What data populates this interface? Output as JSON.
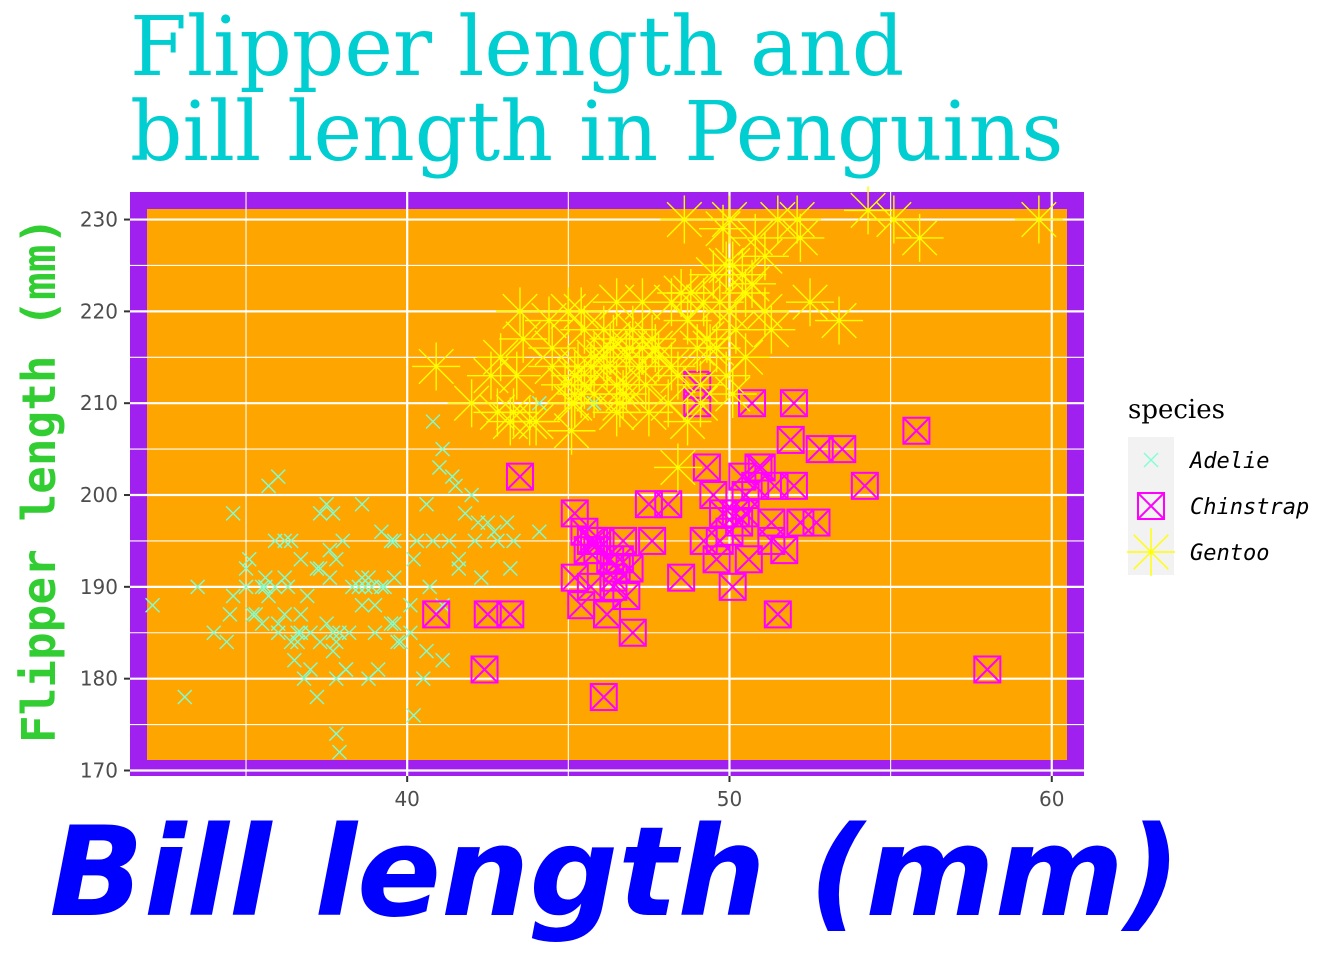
{
  "chart_data": {
    "type": "scatter",
    "title_lines": [
      "Flipper length and",
      "bill length in Penguins"
    ],
    "xlabel": "Bill length (mm)",
    "ylabel": "Flipper length (mm)",
    "xlim": [
      31.4,
      61.0
    ],
    "ylim": [
      169.4,
      233.0
    ],
    "x_ticks": [
      40,
      50,
      60
    ],
    "y_ticks": [
      170,
      180,
      190,
      200,
      210,
      220,
      230
    ],
    "grid": true,
    "legend": {
      "title": "species",
      "position": "right"
    },
    "colors": {
      "panel_border": "#A020F0",
      "panel_fill": "#FFA500",
      "grid": "#ffffff",
      "legend_key_bg": "#F2F2F2"
    },
    "series": [
      {
        "name": "Adelie",
        "color": "#7FFFD4",
        "marker": "x",
        "points": [
          [
            32.1,
            188
          ],
          [
            33.1,
            178
          ],
          [
            33.5,
            190
          ],
          [
            34.0,
            185
          ],
          [
            34.4,
            184
          ],
          [
            34.5,
            187
          ],
          [
            34.6,
            198
          ],
          [
            34.6,
            189
          ],
          [
            35.0,
            192
          ],
          [
            35.0,
            190
          ],
          [
            35.1,
            193
          ],
          [
            35.2,
            187
          ],
          [
            35.3,
            187
          ],
          [
            35.5,
            186
          ],
          [
            35.5,
            190
          ],
          [
            35.6,
            191
          ],
          [
            35.7,
            189
          ],
          [
            35.9,
            190
          ],
          [
            35.9,
            195
          ],
          [
            36.0,
            185
          ],
          [
            36.0,
            186
          ],
          [
            36.0,
            202
          ],
          [
            36.2,
            187
          ],
          [
            36.2,
            191
          ],
          [
            36.2,
            195
          ],
          [
            36.3,
            190
          ],
          [
            36.4,
            184
          ],
          [
            36.5,
            182
          ],
          [
            36.6,
            185
          ],
          [
            36.6,
            184
          ],
          [
            36.7,
            187
          ],
          [
            36.7,
            193
          ],
          [
            36.8,
            180
          ],
          [
            36.9,
            189
          ],
          [
            37.0,
            185
          ],
          [
            37.0,
            181
          ],
          [
            37.2,
            178
          ],
          [
            37.2,
            192
          ],
          [
            37.3,
            184
          ],
          [
            37.3,
            192
          ],
          [
            37.3,
            198
          ],
          [
            37.5,
            199
          ],
          [
            37.6,
            194
          ],
          [
            37.6,
            191
          ],
          [
            37.7,
            185
          ],
          [
            37.7,
            183
          ],
          [
            37.7,
            198
          ],
          [
            37.8,
            174
          ],
          [
            37.8,
            180
          ],
          [
            37.8,
            184
          ],
          [
            37.9,
            172
          ],
          [
            37.9,
            185
          ],
          [
            38.0,
            195
          ],
          [
            38.1,
            181
          ],
          [
            38.2,
            185
          ],
          [
            38.3,
            190
          ],
          [
            38.5,
            190
          ],
          [
            38.6,
            188
          ],
          [
            38.6,
            191
          ],
          [
            38.6,
            199
          ],
          [
            38.7,
            190
          ],
          [
            38.8,
            191
          ],
          [
            38.8,
            180
          ],
          [
            38.9,
            190
          ],
          [
            39.0,
            188
          ],
          [
            39.0,
            185
          ],
          [
            39.1,
            181
          ],
          [
            39.2,
            190
          ],
          [
            39.2,
            196
          ],
          [
            39.3,
            190
          ],
          [
            39.5,
            186
          ],
          [
            39.6,
            191
          ],
          [
            39.6,
            186
          ],
          [
            39.7,
            184
          ],
          [
            39.8,
            184
          ],
          [
            40.1,
            188
          ],
          [
            40.2,
            176
          ],
          [
            40.2,
            193
          ],
          [
            40.3,
            195
          ],
          [
            40.5,
            180
          ],
          [
            40.6,
            183
          ],
          [
            40.6,
            199
          ],
          [
            40.7,
            190
          ],
          [
            40.8,
            195
          ],
          [
            40.9,
            187
          ],
          [
            41.0,
            203
          ],
          [
            41.1,
            182
          ],
          [
            41.1,
            188
          ],
          [
            41.3,
            195
          ],
          [
            41.4,
            202
          ],
          [
            41.5,
            201
          ],
          [
            41.6,
            192
          ],
          [
            41.8,
            198
          ],
          [
            42.0,
            200
          ],
          [
            42.2,
            197
          ],
          [
            42.3,
            191
          ],
          [
            42.5,
            197
          ],
          [
            42.7,
            196
          ],
          [
            42.8,
            195
          ],
          [
            43.1,
            197
          ],
          [
            43.2,
            192
          ],
          [
            43.3,
            195
          ],
          [
            44.1,
            196
          ],
          [
            44.1,
            210
          ],
          [
            45.8,
            210
          ],
          [
            46.0,
            194
          ],
          [
            39.5,
            195
          ],
          [
            40.8,
            208
          ],
          [
            41.1,
            205
          ],
          [
            36.4,
            195
          ],
          [
            35.7,
            201
          ],
          [
            37.8,
            193
          ],
          [
            38.1,
            181
          ],
          [
            39.6,
            195
          ],
          [
            40.1,
            185
          ],
          [
            42.1,
            195
          ],
          [
            41.6,
            193
          ],
          [
            35.6,
            190
          ],
          [
            36.7,
            185
          ],
          [
            37.5,
            186
          ]
        ]
      },
      {
        "name": "Chinstrap",
        "color": "#FF00FF",
        "marker": "square-x",
        "points": [
          [
            40.9,
            187
          ],
          [
            42.4,
            181
          ],
          [
            42.5,
            187
          ],
          [
            43.2,
            187
          ],
          [
            43.5,
            202
          ],
          [
            45.2,
            198
          ],
          [
            45.2,
            191
          ],
          [
            45.4,
            188
          ],
          [
            45.5,
            196
          ],
          [
            45.6,
            194
          ],
          [
            45.7,
            195
          ],
          [
            45.7,
            190
          ],
          [
            45.9,
            194
          ],
          [
            46.0,
            195
          ],
          [
            46.1,
            178
          ],
          [
            46.2,
            187
          ],
          [
            46.4,
            191
          ],
          [
            46.4,
            190
          ],
          [
            46.5,
            192
          ],
          [
            46.6,
            193
          ],
          [
            46.7,
            195
          ],
          [
            46.8,
            189
          ],
          [
            46.9,
            192
          ],
          [
            47.0,
            185
          ],
          [
            47.5,
            199
          ],
          [
            47.6,
            195
          ],
          [
            48.1,
            199
          ],
          [
            48.5,
            191
          ],
          [
            49.0,
            210
          ],
          [
            49.0,
            212
          ],
          [
            49.2,
            195
          ],
          [
            49.3,
            203
          ],
          [
            49.5,
            200
          ],
          [
            49.6,
            193
          ],
          [
            49.7,
            195
          ],
          [
            49.8,
            198
          ],
          [
            50.0,
            196
          ],
          [
            50.1,
            190
          ],
          [
            50.2,
            198
          ],
          [
            50.3,
            197
          ],
          [
            50.5,
            198
          ],
          [
            50.5,
            200
          ],
          [
            50.6,
            193
          ],
          [
            50.7,
            210
          ],
          [
            50.8,
            201
          ],
          [
            50.9,
            203
          ],
          [
            51.0,
            203
          ],
          [
            51.3,
            197
          ],
          [
            51.4,
            201
          ],
          [
            51.5,
            187
          ],
          [
            51.7,
            194
          ],
          [
            51.9,
            206
          ],
          [
            52.0,
            201
          ],
          [
            52.0,
            210
          ],
          [
            52.2,
            197
          ],
          [
            52.7,
            197
          ],
          [
            52.8,
            205
          ],
          [
            53.5,
            205
          ],
          [
            54.2,
            201
          ],
          [
            55.8,
            207
          ],
          [
            58.0,
            181
          ],
          [
            46.3,
            193
          ],
          [
            50.4,
            202
          ],
          [
            45.8,
            195
          ],
          [
            51.3,
            195
          ]
        ]
      },
      {
        "name": "Gentoo",
        "color": "#FFFF00",
        "marker": "star",
        "points": [
          [
            40.9,
            214
          ],
          [
            42.0,
            210
          ],
          [
            42.6,
            213
          ],
          [
            42.8,
            209
          ],
          [
            42.9,
            215
          ],
          [
            43.2,
            208
          ],
          [
            43.3,
            209
          ],
          [
            43.4,
            213
          ],
          [
            43.5,
            220
          ],
          [
            43.6,
            217
          ],
          [
            44.0,
            208
          ],
          [
            44.4,
            219
          ],
          [
            44.5,
            216
          ],
          [
            44.9,
            212
          ],
          [
            45.0,
            220
          ],
          [
            45.1,
            210
          ],
          [
            45.2,
            213
          ],
          [
            45.3,
            214
          ],
          [
            45.4,
            211
          ],
          [
            45.5,
            212
          ],
          [
            45.7,
            214
          ],
          [
            45.8,
            215
          ],
          [
            46.1,
            215
          ],
          [
            46.2,
            214
          ],
          [
            46.3,
            216
          ],
          [
            46.4,
            217
          ],
          [
            46.5,
            212
          ],
          [
            46.6,
            210
          ],
          [
            46.7,
            211
          ],
          [
            46.8,
            215
          ],
          [
            46.9,
            216
          ],
          [
            47.0,
            218
          ],
          [
            47.2,
            214
          ],
          [
            47.3,
            216
          ],
          [
            47.4,
            212
          ],
          [
            47.5,
            209
          ],
          [
            47.6,
            217
          ],
          [
            47.7,
            216
          ],
          [
            47.8,
            215
          ],
          [
            48.1,
            210
          ],
          [
            48.2,
            221
          ],
          [
            48.4,
            213
          ],
          [
            48.5,
            222
          ],
          [
            48.6,
            230
          ],
          [
            48.7,
            208
          ],
          [
            48.8,
            222
          ],
          [
            49.0,
            216
          ],
          [
            49.1,
            212
          ],
          [
            49.2,
            221
          ],
          [
            49.3,
            217
          ],
          [
            49.4,
            216
          ],
          [
            49.5,
            224
          ],
          [
            49.6,
            216
          ],
          [
            49.8,
            229
          ],
          [
            49.9,
            213
          ],
          [
            50.0,
            220
          ],
          [
            50.1,
            225
          ],
          [
            50.2,
            218
          ],
          [
            50.4,
            224
          ],
          [
            50.5,
            222
          ],
          [
            50.7,
            223
          ],
          [
            50.8,
            228
          ],
          [
            51.1,
            220
          ],
          [
            51.3,
            218
          ],
          [
            51.5,
            230
          ],
          [
            52.1,
            230
          ],
          [
            52.2,
            228
          ],
          [
            52.5,
            221
          ],
          [
            53.4,
            219
          ],
          [
            54.3,
            231
          ],
          [
            55.1,
            230
          ],
          [
            55.9,
            228
          ],
          [
            59.6,
            230
          ],
          [
            48.4,
            203
          ],
          [
            46.5,
            209
          ],
          [
            45.1,
            207
          ],
          [
            46.8,
            212
          ],
          [
            49.1,
            210
          ],
          [
            47.3,
            221
          ],
          [
            50.5,
            215
          ],
          [
            45.5,
            218
          ],
          [
            46.1,
            218
          ],
          [
            48.7,
            219
          ],
          [
            49.7,
            221
          ],
          [
            50.0,
            230
          ],
          [
            51.1,
            226
          ],
          [
            46.5,
            221
          ],
          [
            44.5,
            214
          ],
          [
            45.4,
            220
          ],
          [
            49.9,
            225
          ],
          [
            43.8,
            208
          ],
          [
            45.2,
            210
          ],
          [
            45.8,
            211
          ],
          [
            48.2,
            214
          ],
          [
            50.1,
            211
          ]
        ]
      }
    ]
  }
}
